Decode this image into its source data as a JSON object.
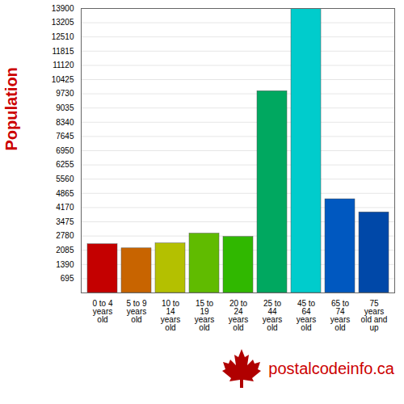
{
  "chart_data": {
    "type": "bar",
    "categories": [
      "0 to 4 years old",
      "5 to 9 years old",
      "10 to 14 years old",
      "15 to 19 years old",
      "20 to 24 years old",
      "25 to 44 years old",
      "45 to 64 years old",
      "65 to 74 years old",
      "75 years old and up"
    ],
    "values": [
      2380,
      2180,
      2420,
      2900,
      2740,
      9860,
      13900,
      4580,
      3940
    ],
    "colors": [
      "#c40000",
      "#c86400",
      "#b4c000",
      "#60bb00",
      "#30b800",
      "#00a860",
      "#00cccc",
      "#0058c0",
      "#0048a8"
    ],
    "y_label": "Population",
    "ylim": [
      0,
      13900
    ],
    "yticks": [
      695,
      1390,
      2085,
      2780,
      3475,
      4170,
      4865,
      5560,
      6255,
      6950,
      7645,
      8340,
      9035,
      9730,
      10425,
      11120,
      11815,
      12510,
      13205,
      13900
    ],
    "grid": true,
    "caption": "postalcodeinfo.ca"
  }
}
